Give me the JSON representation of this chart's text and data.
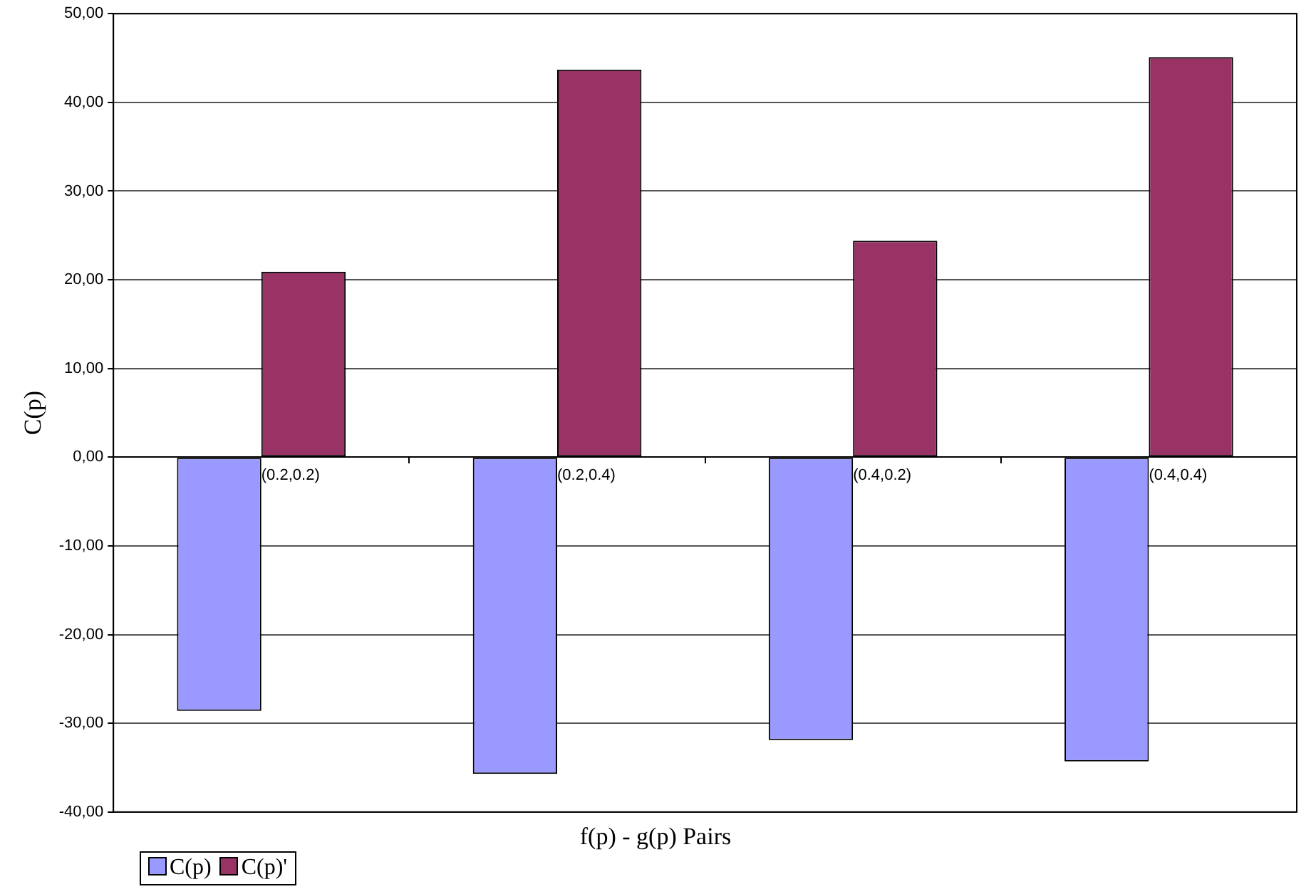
{
  "chart_data": {
    "type": "bar",
    "xlabel": "f(p) - g(p) Pairs",
    "ylabel": "C(p)",
    "categories": [
      "(0.2,0.2)",
      "(0.2,0.4)",
      "(0.4,0.2)",
      "(0.4,0.4)"
    ],
    "series": [
      {
        "name": "C(p)",
        "color": "#9999ff",
        "values": [
          -28.6,
          -35.7,
          -31.9,
          -34.3
        ]
      },
      {
        "name": "C(p)'",
        "color": "#993366",
        "values": [
          20.9,
          43.7,
          24.4,
          45.1
        ]
      }
    ],
    "ylim": [
      -40,
      50
    ],
    "yticks": [
      {
        "value": -40,
        "label": "-40,00"
      },
      {
        "value": -30,
        "label": "-30,00"
      },
      {
        "value": -20,
        "label": "-20,00"
      },
      {
        "value": -10,
        "label": "-10,00"
      },
      {
        "value": 0,
        "label": "0,00"
      },
      {
        "value": 10,
        "label": "10,00"
      },
      {
        "value": 20,
        "label": "20,00"
      },
      {
        "value": 30,
        "label": "30,00"
      },
      {
        "value": 40,
        "label": "40,00"
      },
      {
        "value": 50,
        "label": "50,00"
      }
    ],
    "grid": "y",
    "legend": "bottom left"
  }
}
